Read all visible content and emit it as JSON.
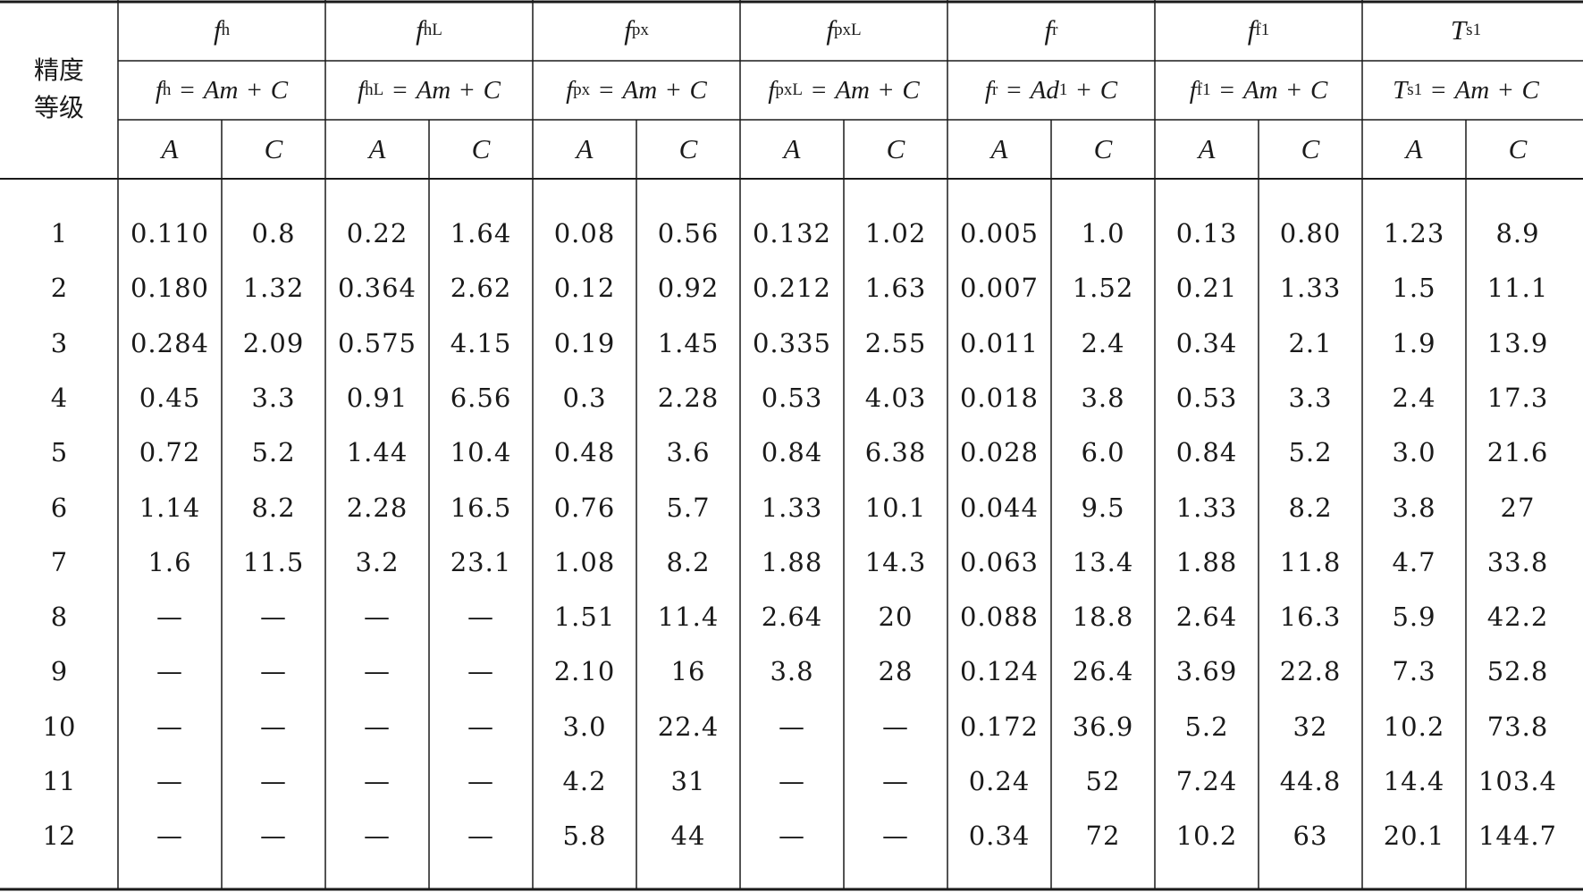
{
  "corner_header": {
    "line1": "精度",
    "line2": "等级"
  },
  "groups": [
    {
      "sym": "f",
      "sub": "h",
      "f_lhs": "f",
      "f_lhs_sub": "h",
      "f_rhs": "Am",
      "f_var_sub": ""
    },
    {
      "sym": "f",
      "sub": "hL",
      "f_lhs": "f",
      "f_lhs_sub": "hL",
      "f_rhs": "Am",
      "f_var_sub": ""
    },
    {
      "sym": "f",
      "sub": "px",
      "f_lhs": "f",
      "f_lhs_sub": "px",
      "f_rhs": "Am",
      "f_var_sub": ""
    },
    {
      "sym": "f",
      "sub": "pxL",
      "f_lhs": "f",
      "f_lhs_sub": "pxL",
      "f_rhs": "Am",
      "f_var_sub": ""
    },
    {
      "sym": "f",
      "sub": "r",
      "f_lhs": "f",
      "f_lhs_sub": "r",
      "f_rhs": "Ad",
      "f_var_sub": "1"
    },
    {
      "sym": "f",
      "sub": "f1",
      "f_lhs": "f",
      "f_lhs_sub": "f1",
      "f_rhs": "Am",
      "f_var_sub": ""
    },
    {
      "sym": "T",
      "sub": "s1",
      "f_lhs": "T",
      "f_lhs_sub": "s1",
      "f_rhs": "Am",
      "f_var_sub": ""
    }
  ],
  "formula_eq": "=",
  "formula_plus": "+",
  "formula_c": "C",
  "col_a": "A",
  "col_c": "C",
  "rows": [
    {
      "grade": "1",
      "cells": [
        "0.110",
        "0.8",
        "0.22",
        "1.64",
        "0.08",
        "0.56",
        "0.132",
        "1.02",
        "0.005",
        "1.0",
        "0.13",
        "0.80",
        "1.23",
        "8.9"
      ]
    },
    {
      "grade": "2",
      "cells": [
        "0.180",
        "1.32",
        "0.364",
        "2.62",
        "0.12",
        "0.92",
        "0.212",
        "1.63",
        "0.007",
        "1.52",
        "0.21",
        "1.33",
        "1.5",
        "11.1"
      ]
    },
    {
      "grade": "3",
      "cells": [
        "0.284",
        "2.09",
        "0.575",
        "4.15",
        "0.19",
        "1.45",
        "0.335",
        "2.55",
        "0.011",
        "2.4",
        "0.34",
        "2.1",
        "1.9",
        "13.9"
      ]
    },
    {
      "grade": "4",
      "cells": [
        "0.45",
        "3.3",
        "0.91",
        "6.56",
        "0.3",
        "2.28",
        "0.53",
        "4.03",
        "0.018",
        "3.8",
        "0.53",
        "3.3",
        "2.4",
        "17.3"
      ]
    },
    {
      "grade": "5",
      "cells": [
        "0.72",
        "5.2",
        "1.44",
        "10.4",
        "0.48",
        "3.6",
        "0.84",
        "6.38",
        "0.028",
        "6.0",
        "0.84",
        "5.2",
        "3.0",
        "21.6"
      ]
    },
    {
      "grade": "6",
      "cells": [
        "1.14",
        "8.2",
        "2.28",
        "16.5",
        "0.76",
        "5.7",
        "1.33",
        "10.1",
        "0.044",
        "9.5",
        "1.33",
        "8.2",
        "3.8",
        "27"
      ]
    },
    {
      "grade": "7",
      "cells": [
        "1.6",
        "11.5",
        "3.2",
        "23.1",
        "1.08",
        "8.2",
        "1.88",
        "14.3",
        "0.063",
        "13.4",
        "1.88",
        "11.8",
        "4.7",
        "33.8"
      ]
    },
    {
      "grade": "8",
      "cells": [
        "—",
        "—",
        "—",
        "—",
        "1.51",
        "11.4",
        "2.64",
        "20",
        "0.088",
        "18.8",
        "2.64",
        "16.3",
        "5.9",
        "42.2"
      ]
    },
    {
      "grade": "9",
      "cells": [
        "—",
        "—",
        "—",
        "—",
        "2.10",
        "16",
        "3.8",
        "28",
        "0.124",
        "26.4",
        "3.69",
        "22.8",
        "7.3",
        "52.8"
      ]
    },
    {
      "grade": "10",
      "cells": [
        "—",
        "—",
        "—",
        "—",
        "3.0",
        "22.4",
        "—",
        "—",
        "0.172",
        "36.9",
        "5.2",
        "32",
        "10.2",
        "73.8"
      ]
    },
    {
      "grade": "11",
      "cells": [
        "—",
        "—",
        "—",
        "—",
        "4.2",
        "31",
        "—",
        "—",
        "0.24",
        "52",
        "7.24",
        "44.8",
        "14.4",
        "103.4"
      ]
    },
    {
      "grade": "12",
      "cells": [
        "—",
        "—",
        "—",
        "—",
        "5.8",
        "44",
        "—",
        "—",
        "0.34",
        "72",
        "10.2",
        "63",
        "20.1",
        "144.7"
      ]
    }
  ]
}
